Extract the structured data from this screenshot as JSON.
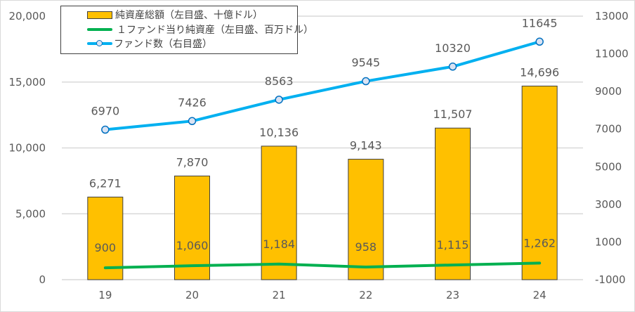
{
  "chart_data": {
    "type": "bar+line",
    "categories": [
      "19",
      "20",
      "21",
      "22",
      "23",
      "24"
    ],
    "series": [
      {
        "name": "純資産総額（左目盛、十億ドル）",
        "type": "bar",
        "axis": "left",
        "color": "#FFC000",
        "values": [
          6271,
          7870,
          10136,
          9143,
          11507,
          14696
        ],
        "labels": [
          "6,271",
          "7,870",
          "10,136",
          "9,143",
          "11,507",
          "14,696"
        ]
      },
      {
        "name": "１ファンド当り純資産（左目盛、百万ドル）",
        "type": "line",
        "axis": "left",
        "color": "#00B050",
        "values": [
          900,
          1060,
          1184,
          958,
          1115,
          1262
        ],
        "labels": [
          "900",
          "1,060",
          "1,184",
          "958",
          "1,115",
          "1,262"
        ]
      },
      {
        "name": "ファンド数（右目盛）",
        "type": "line",
        "axis": "right",
        "color": "#00B0F0",
        "marker": "circle",
        "values": [
          6970,
          7426,
          8563,
          9545,
          10320,
          11645
        ],
        "labels": [
          "6970",
          "7426",
          "8563",
          "9545",
          "10320",
          "11645"
        ]
      }
    ],
    "left_axis": {
      "min": 0,
      "max": 20000,
      "ticks": [
        0,
        5000,
        10000,
        15000,
        20000
      ],
      "tick_labels": [
        "0",
        "5,000",
        "10,000",
        "15,000",
        "20,000"
      ]
    },
    "right_axis": {
      "min": -1000,
      "max": 13000,
      "ticks": [
        -1000,
        1000,
        3000,
        5000,
        7000,
        9000,
        11000,
        13000
      ],
      "tick_labels": [
        "-1000",
        "1000",
        "3000",
        "5000",
        "7000",
        "9000",
        "11000",
        "13000"
      ]
    },
    "title": "",
    "xlabel": "",
    "ylabel": "",
    "grid": true,
    "legend_position": "top-left"
  },
  "legend": {
    "items": [
      {
        "label": "純資産総額（左目盛、十億ドル）",
        "kind": "bar-swatch"
      },
      {
        "label": "１ファンド当り純資産（左目盛、百万ドル）",
        "kind": "line"
      },
      {
        "label": "ファンド数（右目盛）",
        "kind": "line-marker"
      }
    ]
  }
}
